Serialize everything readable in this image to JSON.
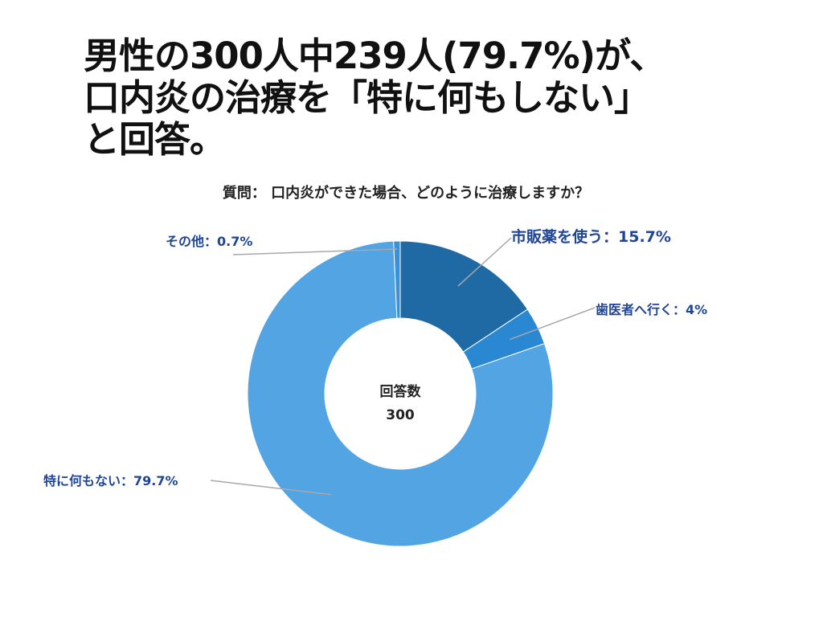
{
  "headline": {
    "line1": "男性の300人中239人(79.7%)が、",
    "line2": "口内炎の治療を「特に何もしない」",
    "line3": "と回答。"
  },
  "chart_data": {
    "type": "pie",
    "title": "質問： 口内炎ができた場合、どのように治療しますか？",
    "center": {
      "label": "回答数",
      "value": "300"
    },
    "slices": [
      {
        "label": "市販薬を使う：15.7%",
        "value": 15.7,
        "color": "#1f6aa5"
      },
      {
        "label": "歯医者へ行く：4%",
        "value": 4,
        "color": "#2a88d2"
      },
      {
        "label": "特に何もない：79.7%",
        "value": 79.7,
        "color": "#53a4e2"
      },
      {
        "label": "その他：0.7%",
        "value": 0.7,
        "color": "#3d90d6"
      }
    ]
  },
  "colors": {
    "label_text": "#1f4596",
    "leader_line": "#a8a8a8"
  }
}
